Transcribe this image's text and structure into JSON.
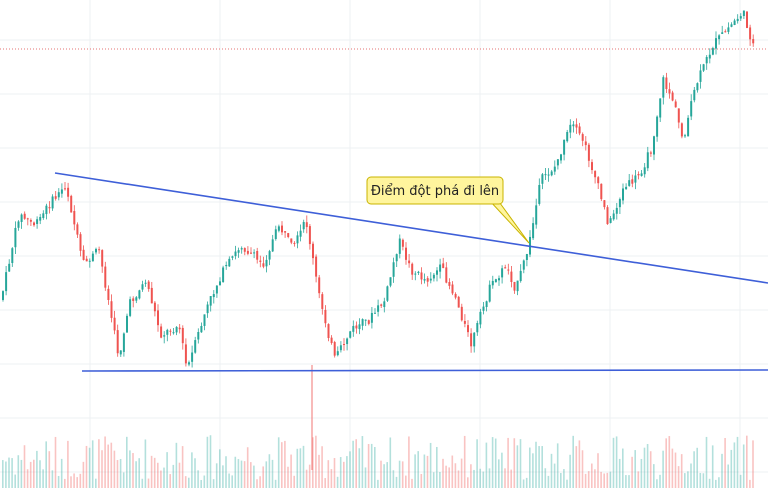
{
  "chart_data": {
    "type": "candlestick",
    "grid": true,
    "annotation": {
      "text": "Điểm đột phá đi lên"
    },
    "overlays": {
      "descending_trendline": true,
      "horizontal_support": true,
      "last_price_line": true
    },
    "colors": {
      "up": "#26a69a",
      "down": "#ef5350",
      "trendline": "#3e5fd8",
      "callout_fill": "#fff59d",
      "callout_border": "#c8b400",
      "grid": "#eef0f3",
      "price_line": "#e57373"
    }
  }
}
